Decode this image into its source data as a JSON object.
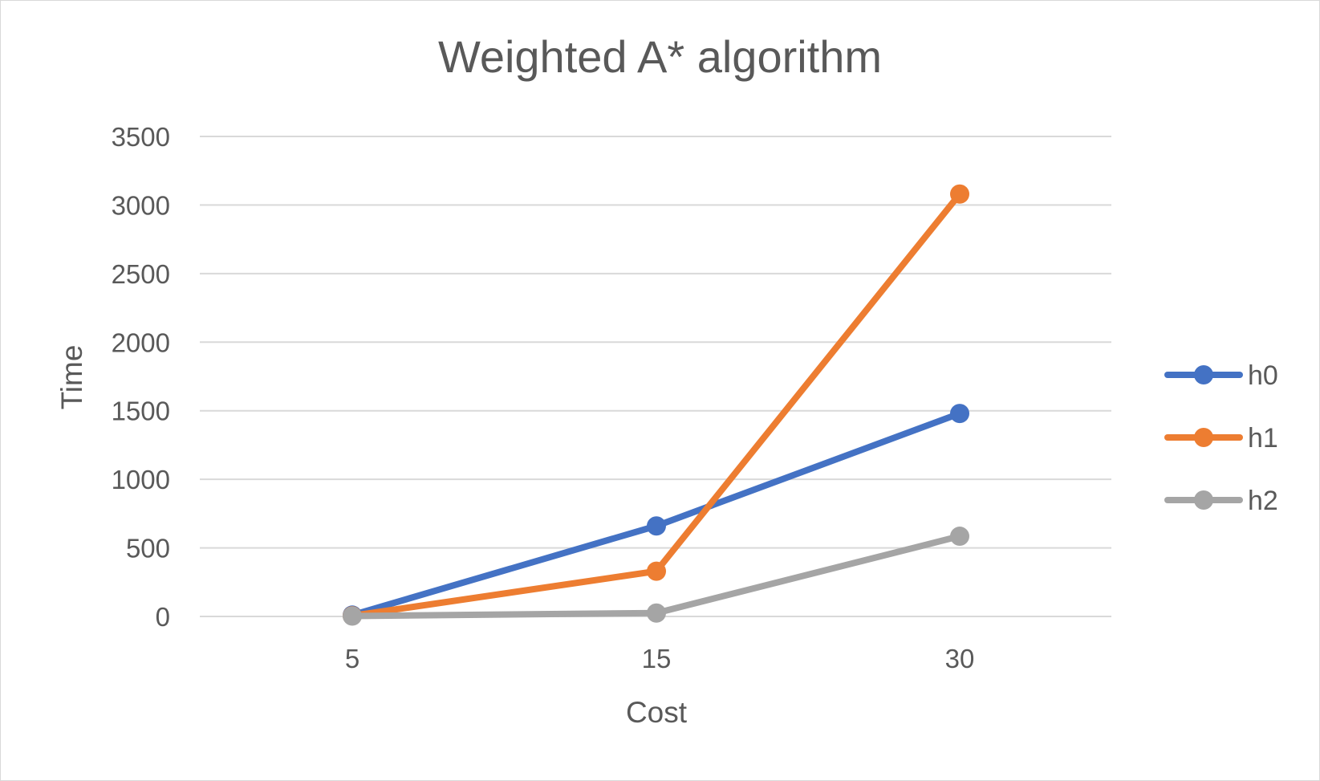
{
  "chart_data": {
    "type": "line",
    "title": "Weighted A* algorithm",
    "xlabel": "Cost",
    "ylabel": "Time",
    "categories": [
      "5",
      "15",
      "30"
    ],
    "ylim": [
      0,
      3500
    ],
    "yticks": [
      0,
      500,
      1000,
      1500,
      2000,
      2500,
      3000,
      3500
    ],
    "grid": true,
    "legend_position": "right",
    "series": [
      {
        "name": "h0",
        "color": "#4472c4",
        "values": [
          10,
          660,
          1480
        ]
      },
      {
        "name": "h1",
        "color": "#ed7d31",
        "values": [
          5,
          330,
          3080
        ]
      },
      {
        "name": "h2",
        "color": "#a5a5a5",
        "values": [
          3,
          25,
          585
        ]
      }
    ]
  }
}
